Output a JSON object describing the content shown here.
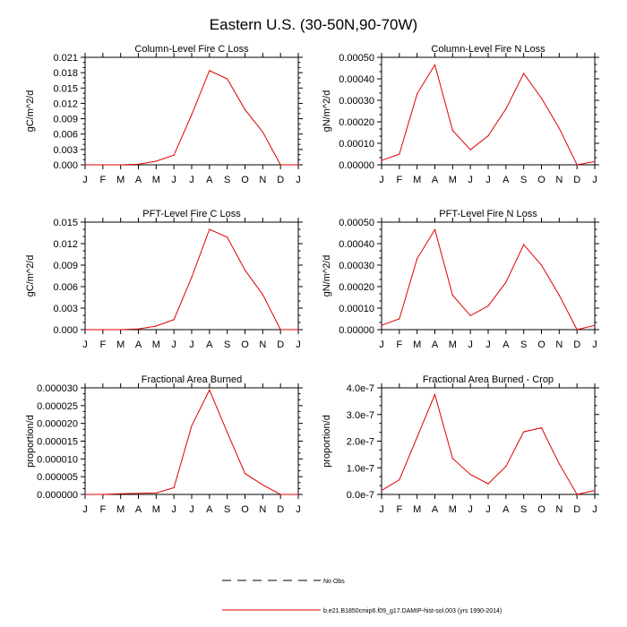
{
  "page": {
    "title": "Eastern U.S. (30-50N,90-70W)"
  },
  "legend": {
    "entries": [
      {
        "label": "No Obs",
        "style": "dashed",
        "color": "#000000"
      },
      {
        "label": "b.e21.B1850cmip6.f09_g17.DAMIP-hist-sol.003 (yrs 1990-2014)",
        "style": "solid",
        "color": "#e00000"
      }
    ]
  },
  "series_color": "#e00000",
  "chart_data": [
    {
      "type": "line",
      "title": "Column-Level Fire C Loss",
      "ylabel": "gC/m^2/d",
      "xlabel": "",
      "categories": [
        "J",
        "F",
        "M",
        "A",
        "M",
        "J",
        "J",
        "A",
        "S",
        "O",
        "N",
        "D",
        "J"
      ],
      "ylim": [
        0,
        0.021
      ],
      "yticks": [
        "0.000",
        "0.003",
        "0.006",
        "0.009",
        "0.012",
        "0.015",
        "0.018",
        "0.021"
      ],
      "series": [
        {
          "values": [
            0.0,
            0.0,
            0.0,
            0.0001,
            0.0007,
            0.0019,
            0.0098,
            0.0184,
            0.0168,
            0.0108,
            0.0064,
            0.0,
            0.0
          ]
        }
      ]
    },
    {
      "type": "line",
      "title": "Column-Level Fire N Loss",
      "ylabel": "gN/m^2/d",
      "xlabel": "",
      "categories": [
        "J",
        "F",
        "M",
        "A",
        "M",
        "J",
        "J",
        "A",
        "S",
        "O",
        "N",
        "D",
        "J"
      ],
      "ylim": [
        0,
        0.0005
      ],
      "yticks": [
        "0.00000",
        "0.00010",
        "0.00020",
        "0.00030",
        "0.00040",
        "0.00050"
      ],
      "series": [
        {
          "values": [
            2e-05,
            5e-05,
            0.00033,
            0.000465,
            0.00016,
            7e-05,
            0.000135,
            0.00026,
            0.000425,
            0.00031,
            0.00017,
            0.0,
            1.5e-05
          ]
        }
      ]
    },
    {
      "type": "line",
      "title": "PFT-Level Fire C Loss",
      "ylabel": "gC/m^2/d",
      "xlabel": "",
      "categories": [
        "J",
        "F",
        "M",
        "A",
        "M",
        "J",
        "J",
        "A",
        "S",
        "O",
        "N",
        "D",
        "J"
      ],
      "ylim": [
        0,
        0.015
      ],
      "yticks": [
        "0.000",
        "0.003",
        "0.006",
        "0.009",
        "0.012",
        "0.015"
      ],
      "series": [
        {
          "values": [
            0.0,
            0.0,
            0.0,
            0.0001,
            0.0005,
            0.0014,
            0.0073,
            0.014,
            0.0129,
            0.0083,
            0.0049,
            0.0,
            0.0
          ]
        }
      ]
    },
    {
      "type": "line",
      "title": "PFT-Level Fire N Loss",
      "ylabel": "gN/m^2/d",
      "xlabel": "",
      "categories": [
        "J",
        "F",
        "M",
        "A",
        "M",
        "J",
        "J",
        "A",
        "S",
        "O",
        "N",
        "D",
        "J"
      ],
      "ylim": [
        0,
        0.0005
      ],
      "yticks": [
        "0.00000",
        "0.00010",
        "0.00020",
        "0.00030",
        "0.00040",
        "0.00050"
      ],
      "series": [
        {
          "values": [
            2e-05,
            5e-05,
            0.00033,
            0.000465,
            0.00016,
            6.5e-05,
            0.00011,
            0.00022,
            0.000395,
            0.0003,
            0.00016,
            0.0,
            2e-05
          ]
        }
      ]
    },
    {
      "type": "line",
      "title": "Fractional Area Burned",
      "ylabel": "proportion/d",
      "xlabel": "",
      "categories": [
        "J",
        "F",
        "M",
        "A",
        "M",
        "J",
        "J",
        "A",
        "S",
        "O",
        "N",
        "D",
        "J"
      ],
      "ylim": [
        0,
        3e-05
      ],
      "yticks": [
        "0.000000",
        "0.000005",
        "0.000010",
        "0.000015",
        "0.000020",
        "0.000025",
        "0.000030"
      ],
      "series": [
        {
          "values": [
            0.0,
            0.0,
            2e-07,
            3e-07,
            4e-07,
            1.9e-06,
            1.93e-05,
            2.94e-05,
            1.75e-05,
            5.9e-06,
            2.7e-06,
            0.0,
            0.0
          ]
        }
      ]
    },
    {
      "type": "line",
      "title": "Fractional Area Burned - Crop",
      "ylabel": "proportion/d",
      "xlabel": "",
      "categories": [
        "J",
        "F",
        "M",
        "A",
        "M",
        "J",
        "J",
        "A",
        "S",
        "O",
        "N",
        "D",
        "J"
      ],
      "ylim": [
        0,
        4e-07
      ],
      "yticks": [
        "0.0e-7",
        "1.0e-7",
        "2.0e-7",
        "3.0e-7",
        "4.0e-7"
      ],
      "series": [
        {
          "values": [
            1.5e-08,
            5.5e-08,
            2.15e-07,
            3.75e-07,
            1.35e-07,
            7.5e-08,
            4e-08,
            1.05e-07,
            2.35e-07,
            2.5e-07,
            1.15e-07,
            0.0,
            1.5e-08
          ]
        }
      ]
    }
  ]
}
